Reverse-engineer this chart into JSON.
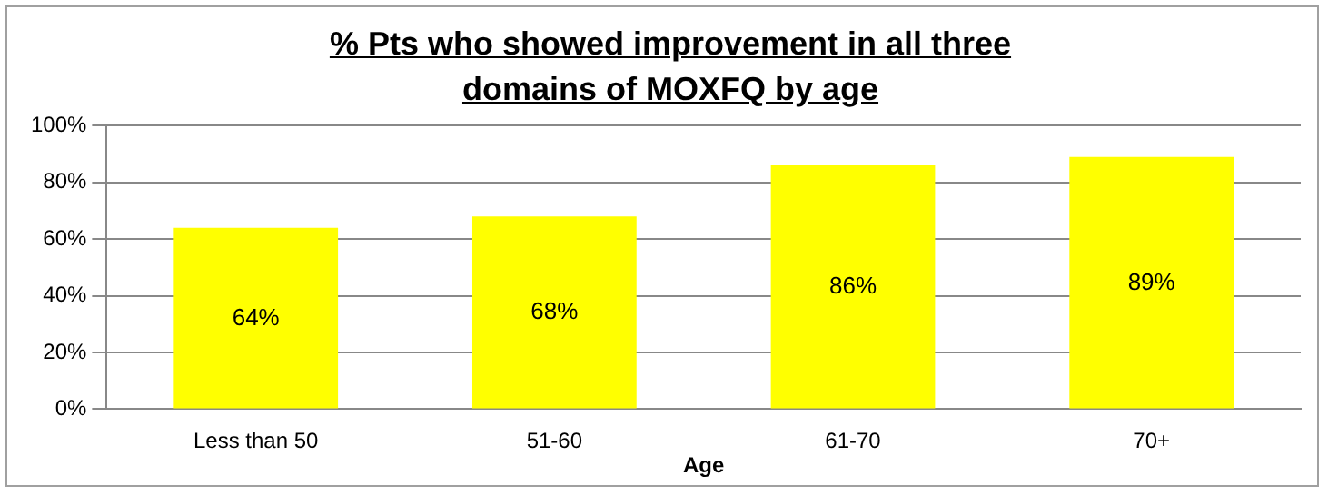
{
  "chart_data": {
    "type": "bar",
    "title": "% Pts who showed improvement in all three domains of MOXFQ by age",
    "xlabel": "Age",
    "categories": [
      "Less than 50",
      "51-60",
      "61-70",
      "70+"
    ],
    "values": [
      64,
      68,
      86,
      89
    ],
    "color": "#ffff00",
    "value_labels": [
      "64%",
      "68%",
      "86%",
      "89%"
    ],
    "ylim": [
      0,
      100
    ],
    "yticks": [
      {
        "value": 0,
        "label": "0%"
      },
      {
        "value": 20,
        "label": "20%"
      },
      {
        "value": 40,
        "label": "40%"
      },
      {
        "value": 60,
        "label": "60%"
      },
      {
        "value": 80,
        "label": "80%"
      },
      {
        "value": 100,
        "label": "100%"
      }
    ],
    "grid": "y",
    "legend": false
  }
}
